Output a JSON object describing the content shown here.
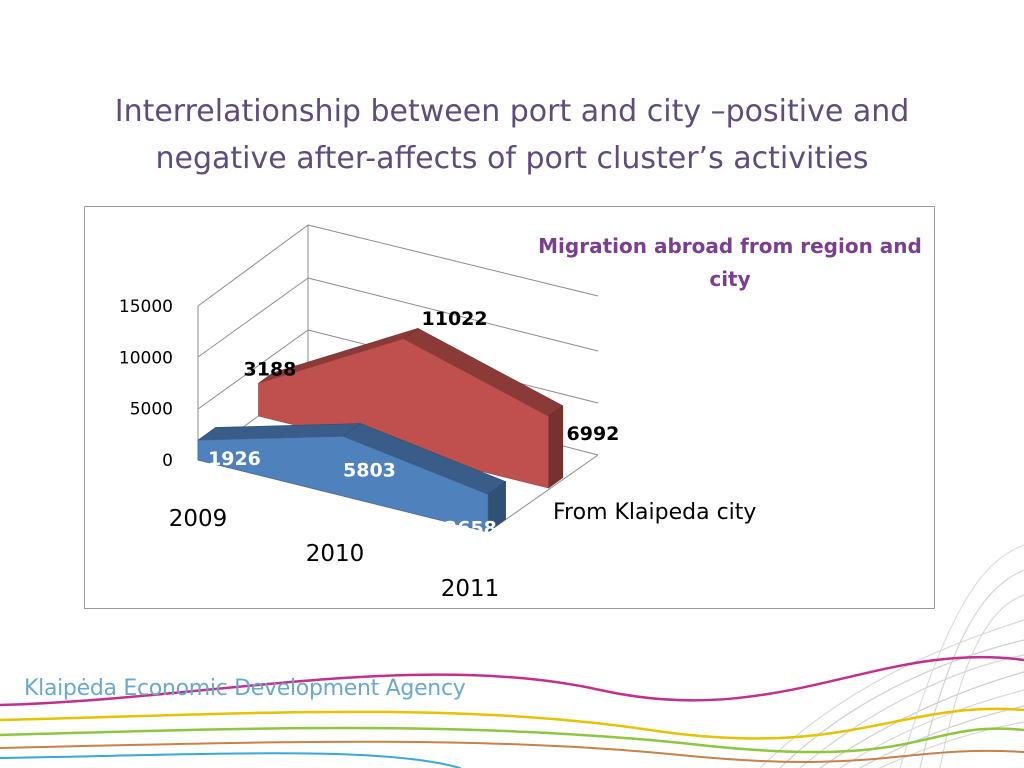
{
  "slide": {
    "title": "Interrelationship between port and city –positive and negative after-affects of port cluster’s activities",
    "brand": "Klaipėda Economic Development Agency"
  },
  "chart_data": {
    "type": "area",
    "title": "Migration abroad from region and city",
    "categories": [
      "2009",
      "2010",
      "2011"
    ],
    "series": [
      {
        "name": "",
        "values": [
          3188,
          11022,
          6992
        ],
        "color": "#c0504d"
      },
      {
        "name": "From Klaipeda city",
        "values": [
          1926,
          5803,
          3658
        ],
        "color": "#4f81bd"
      }
    ],
    "y_ticks": [
      "0",
      "5000",
      "10000",
      "15000"
    ],
    "ylim": [
      0,
      15000
    ],
    "legend": "right",
    "grid": true,
    "three_d": true
  },
  "colors": {
    "title": "#5f4b7d",
    "chart_heading": "#7b3f8f",
    "brand": "#6aa8cf"
  }
}
